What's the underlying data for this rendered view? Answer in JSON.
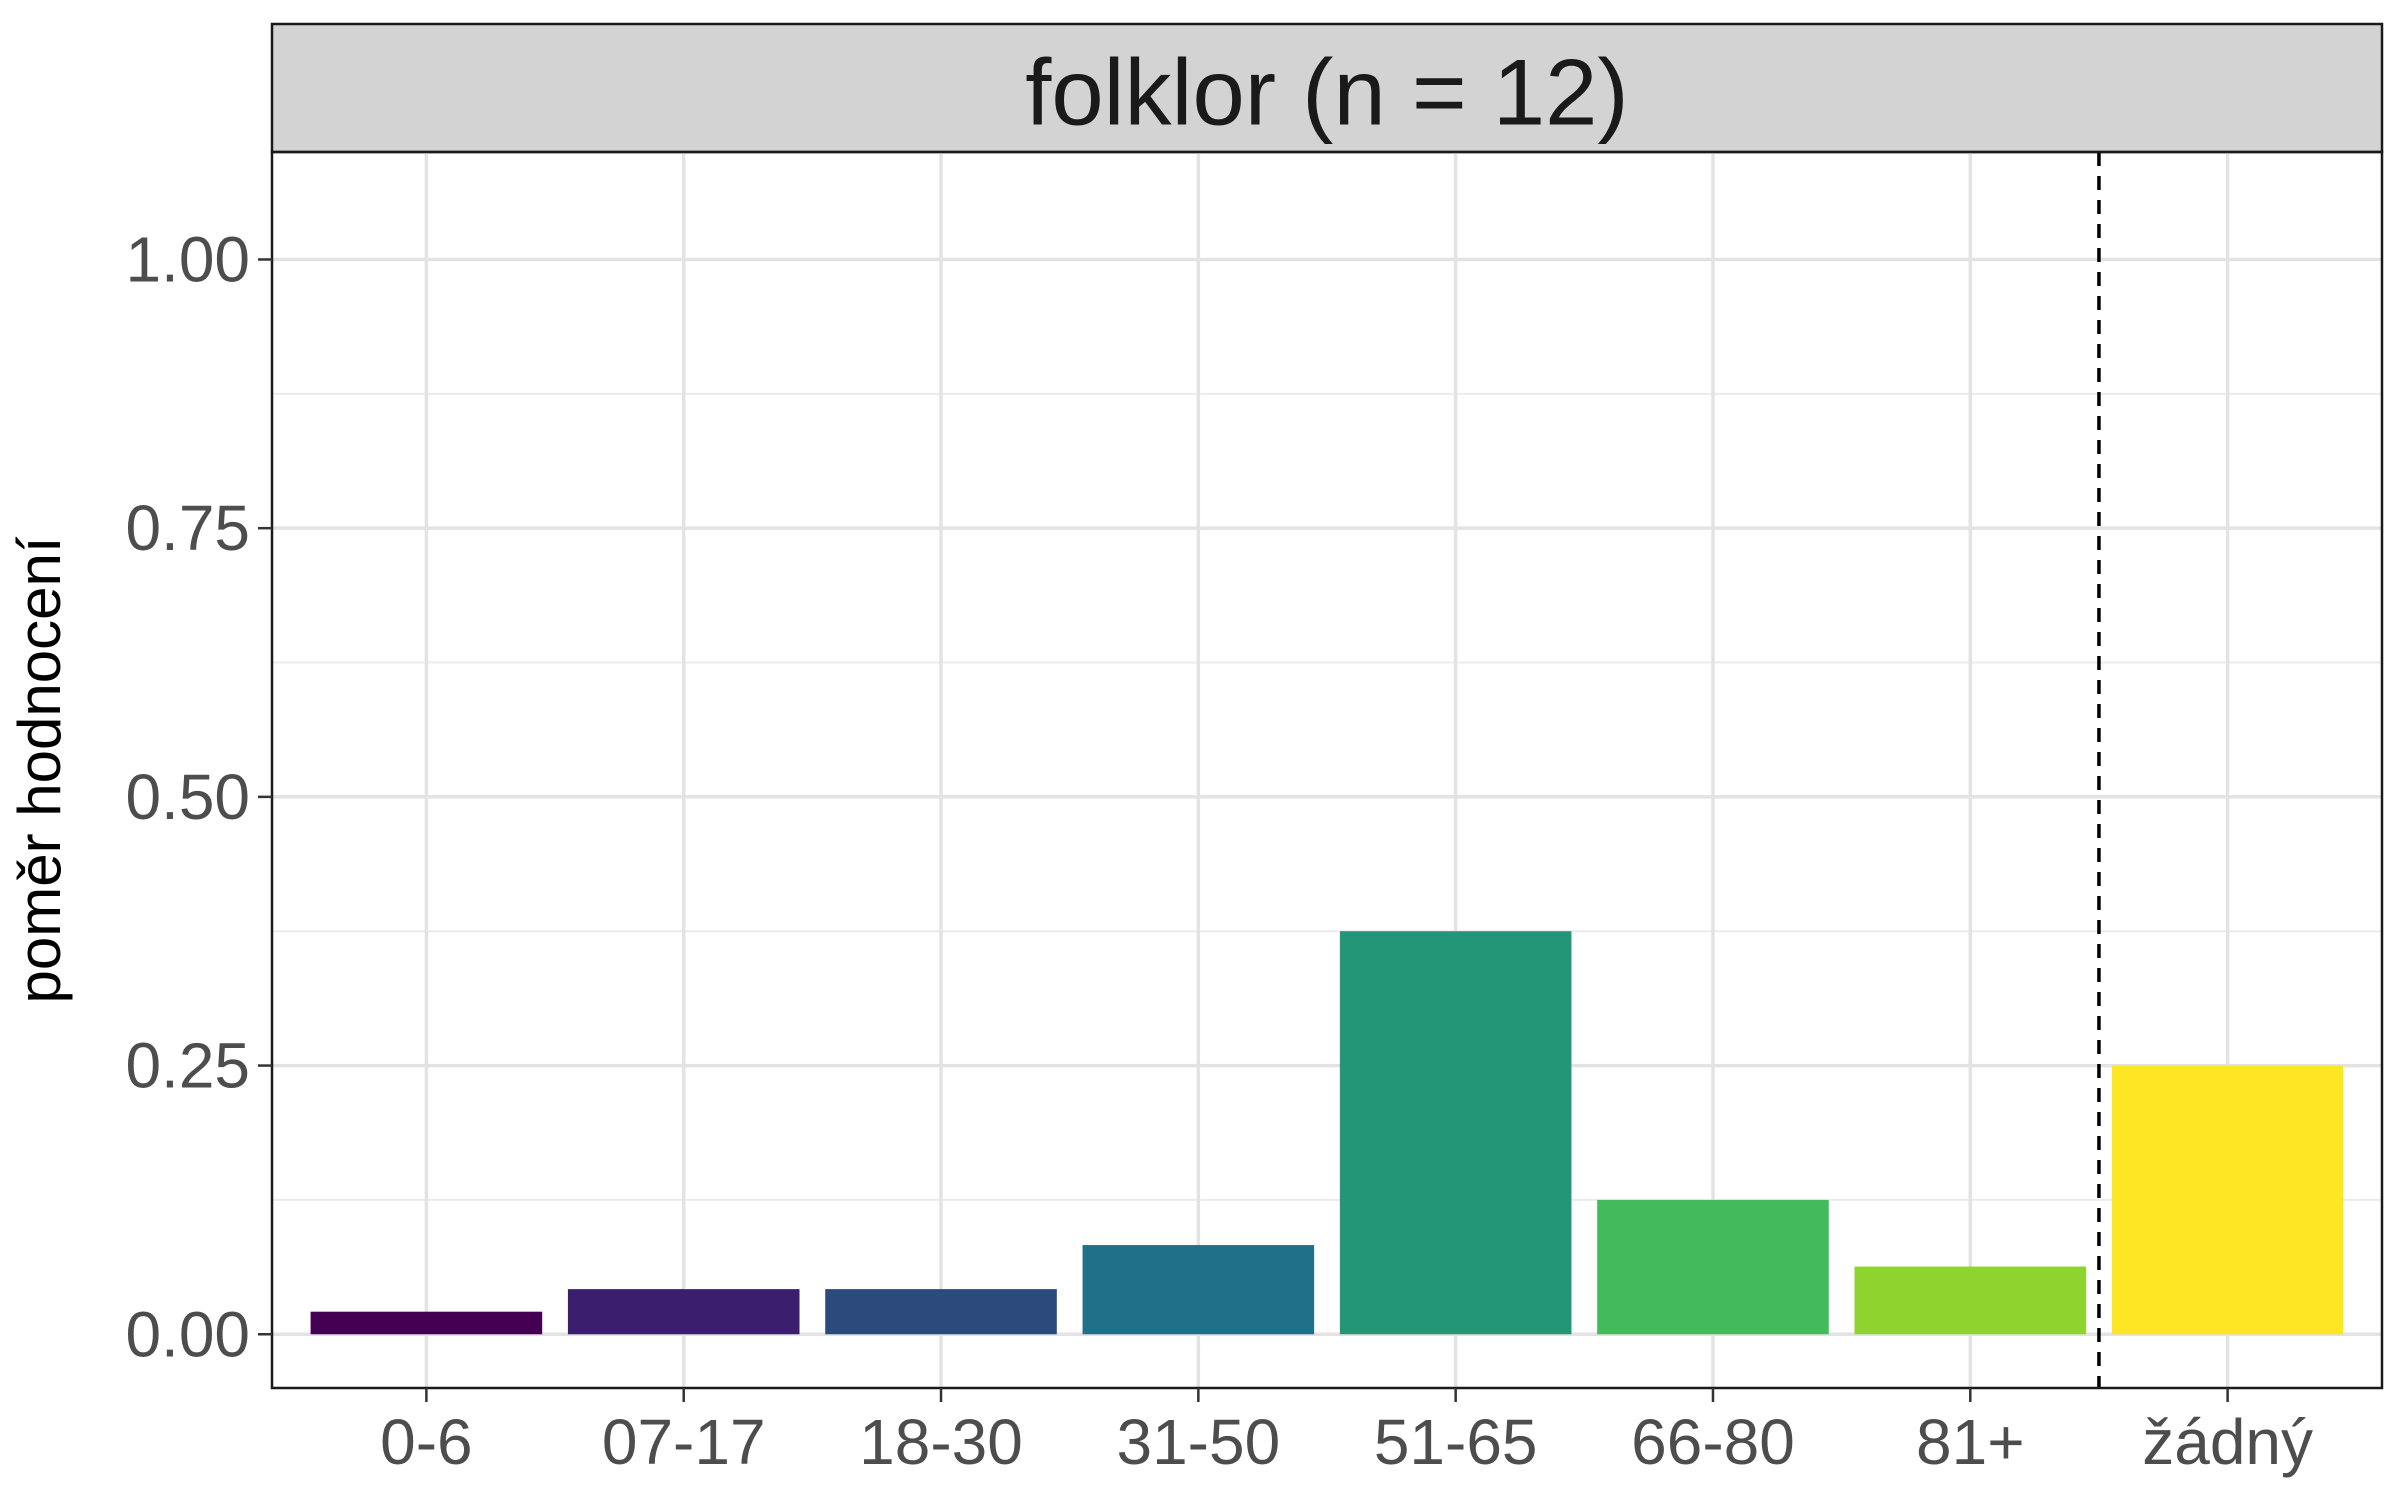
{
  "chart_data": {
    "type": "bar",
    "title": "folklor (n = 12)",
    "xlabel": "",
    "ylabel": "poměr hodnocení",
    "categories": [
      "0-6",
      "07-17",
      "18-30",
      "31-50",
      "51-65",
      "66-80",
      "81+",
      "žádný"
    ],
    "values": [
      0.021,
      0.042,
      0.042,
      0.083,
      0.375,
      0.125,
      0.063,
      0.25
    ],
    "colors": [
      "#440154",
      "#3b1e6e",
      "#2c4a7c",
      "#21708a",
      "#229677",
      "#44bb5a",
      "#8fd32f",
      "#fde725"
    ],
    "ylim": [
      -0.05,
      1.1
    ],
    "yticks": [
      0,
      0.25,
      0.5,
      0.75,
      1.0
    ],
    "ytick_labels": [
      "0.00",
      "0.25",
      "0.50",
      "0.75",
      "1.00"
    ],
    "grid": true,
    "reference_line": {
      "style": "dashed",
      "between_categories": [
        "81+",
        "žádný"
      ]
    }
  }
}
